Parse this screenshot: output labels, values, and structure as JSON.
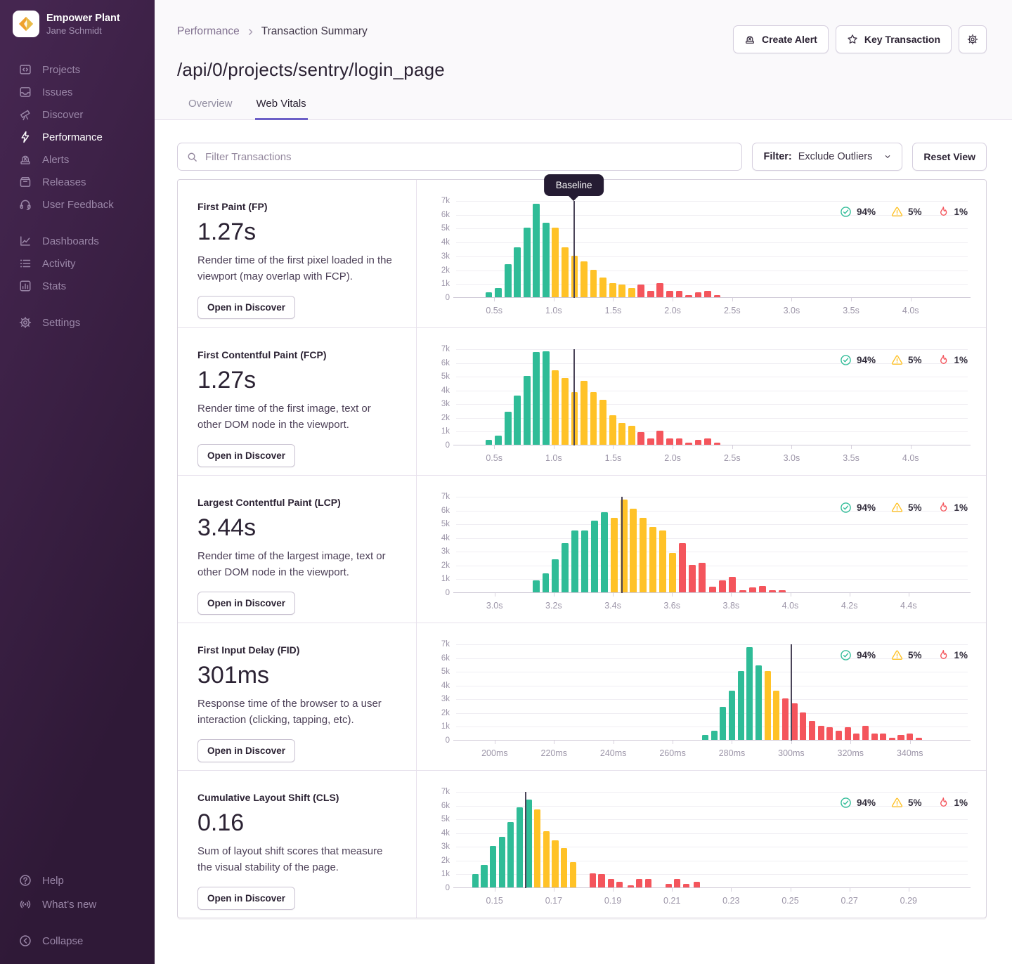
{
  "colors": {
    "good": "#2FBC97",
    "meh": "#FFC227",
    "poor": "#F4555C",
    "accent": "#6C5FC7",
    "baseline": "#4A4458"
  },
  "sidebar": {
    "org_name": "Empower Plant",
    "org_user": "Jane Schmidt",
    "groups": [
      [
        {
          "label": "Projects",
          "icon": "projects"
        },
        {
          "label": "Issues",
          "icon": "issues"
        },
        {
          "label": "Discover",
          "icon": "discover"
        },
        {
          "label": "Performance",
          "icon": "performance",
          "active": true
        },
        {
          "label": "Alerts",
          "icon": "alerts"
        },
        {
          "label": "Releases",
          "icon": "releases"
        },
        {
          "label": "User Feedback",
          "icon": "user-feedback"
        }
      ],
      [
        {
          "label": "Dashboards",
          "icon": "dashboards"
        },
        {
          "label": "Activity",
          "icon": "activity"
        },
        {
          "label": "Stats",
          "icon": "stats"
        }
      ],
      [
        {
          "label": "Settings",
          "icon": "settings"
        }
      ]
    ],
    "footer": [
      {
        "label": "Help",
        "icon": "help"
      },
      {
        "label": "What’s new",
        "icon": "whats-new"
      }
    ],
    "collapse": {
      "label": "Collapse",
      "icon": "collapse"
    }
  },
  "header": {
    "breadcrumb": [
      "Performance",
      "Transaction Summary"
    ],
    "buttons": [
      {
        "label": "Create Alert",
        "icon": "siren"
      },
      {
        "label": "Key Transaction",
        "icon": "star"
      },
      {
        "label": "",
        "icon": "gear"
      }
    ]
  },
  "page": {
    "title": "/api/0/projects/sentry/login_page",
    "tabs": [
      {
        "label": "Overview",
        "active": false
      },
      {
        "label": "Web Vitals",
        "active": true
      }
    ]
  },
  "toolbar": {
    "search_placeholder": "Filter Transactions",
    "filter_label": "Filter:",
    "filter_value": "Exclude Outliers",
    "reset_label": "Reset View"
  },
  "legend": [
    {
      "name": "good",
      "icon": "check-circle",
      "value": "94%"
    },
    {
      "name": "meh",
      "icon": "warning",
      "value": "5%"
    },
    {
      "name": "poor",
      "icon": "fire",
      "value": "1%"
    }
  ],
  "chart_common": {
    "ylabels": [
      "0",
      "1k",
      "2k",
      "3k",
      "4k",
      "5k",
      "6k",
      "7k"
    ],
    "ymax": 7
  },
  "vitals": [
    {
      "name": "First Paint (FP)",
      "value": "1.27s",
      "description": "Render time of the first pixel loaded in the viewport (may overlap with FCP).",
      "button": "Open in Discover",
      "chart": {
        "type": "bar",
        "xmin": 0.18,
        "xmax": 4.48,
        "binw": 0.08,
        "baseline": 1.17,
        "tooltip": "Baseline",
        "ticks": [
          [
            0.5,
            "0.5s"
          ],
          [
            1.0,
            "1.0s"
          ],
          [
            1.5,
            "1.5s"
          ],
          [
            2.0,
            "2.0s"
          ],
          [
            2.5,
            "2.5s"
          ],
          [
            3.0,
            "3.0s"
          ],
          [
            3.5,
            "3.5s"
          ],
          [
            4.0,
            "4.0s"
          ]
        ],
        "bars": [
          [
            0.455,
            0.35,
            "g"
          ],
          [
            0.535,
            0.65,
            "g"
          ],
          [
            0.615,
            2.4,
            "g"
          ],
          [
            0.695,
            3.6,
            "g"
          ],
          [
            0.775,
            5.0,
            "g"
          ],
          [
            0.855,
            6.75,
            "g"
          ],
          [
            0.935,
            5.4,
            "g"
          ],
          [
            1.015,
            5.0,
            "y"
          ],
          [
            1.095,
            3.6,
            "y"
          ],
          [
            1.175,
            3.0,
            "y"
          ],
          [
            1.255,
            2.6,
            "y"
          ],
          [
            1.335,
            2.0,
            "y"
          ],
          [
            1.415,
            1.4,
            "y"
          ],
          [
            1.495,
            1.0,
            "y"
          ],
          [
            1.575,
            0.9,
            "y"
          ],
          [
            1.655,
            0.65,
            "y"
          ],
          [
            1.735,
            0.9,
            "r"
          ],
          [
            1.815,
            0.45,
            "r"
          ],
          [
            1.895,
            1.0,
            "r"
          ],
          [
            1.975,
            0.45,
            "r"
          ],
          [
            2.055,
            0.45,
            "r"
          ],
          [
            2.135,
            0.15,
            "r"
          ],
          [
            2.215,
            0.35,
            "r"
          ],
          [
            2.295,
            0.45,
            "r"
          ],
          [
            2.375,
            0.15,
            "r"
          ]
        ]
      }
    },
    {
      "name": "First Contentful Paint (FCP)",
      "value": "1.27s",
      "description": "Render time of the first image, text or other DOM node in the viewport.",
      "button": "Open in Discover",
      "chart": {
        "type": "bar",
        "xmin": 0.18,
        "xmax": 4.48,
        "binw": 0.08,
        "baseline": 1.17,
        "ticks": [
          [
            0.5,
            "0.5s"
          ],
          [
            1.0,
            "1.0s"
          ],
          [
            1.5,
            "1.5s"
          ],
          [
            2.0,
            "2.0s"
          ],
          [
            2.5,
            "2.5s"
          ],
          [
            3.0,
            "3.0s"
          ],
          [
            3.5,
            "3.5s"
          ],
          [
            4.0,
            "4.0s"
          ]
        ],
        "bars": [
          [
            0.455,
            0.35,
            "g"
          ],
          [
            0.535,
            0.65,
            "g"
          ],
          [
            0.615,
            2.4,
            "g"
          ],
          [
            0.695,
            3.6,
            "g"
          ],
          [
            0.775,
            5.0,
            "g"
          ],
          [
            0.855,
            6.75,
            "g"
          ],
          [
            0.935,
            6.8,
            "g"
          ],
          [
            1.015,
            5.4,
            "y"
          ],
          [
            1.095,
            4.85,
            "y"
          ],
          [
            1.175,
            3.85,
            "y"
          ],
          [
            1.255,
            4.65,
            "y"
          ],
          [
            1.335,
            3.85,
            "y"
          ],
          [
            1.415,
            3.25,
            "y"
          ],
          [
            1.495,
            2.15,
            "y"
          ],
          [
            1.575,
            1.6,
            "y"
          ],
          [
            1.655,
            1.4,
            "y"
          ],
          [
            1.735,
            0.9,
            "r"
          ],
          [
            1.815,
            0.45,
            "r"
          ],
          [
            1.895,
            1.0,
            "r"
          ],
          [
            1.975,
            0.45,
            "r"
          ],
          [
            2.055,
            0.45,
            "r"
          ],
          [
            2.135,
            0.15,
            "r"
          ],
          [
            2.215,
            0.35,
            "r"
          ],
          [
            2.295,
            0.45,
            "r"
          ],
          [
            2.375,
            0.15,
            "r"
          ]
        ]
      }
    },
    {
      "name": "Largest Contentful Paint (LCP)",
      "value": "3.44s",
      "description": "Render time of the largest image, text or other DOM node in the viewport.",
      "button": "Open in Discover",
      "chart": {
        "type": "bar",
        "xmin": 2.87,
        "xmax": 4.6,
        "binw": 0.033,
        "baseline": 3.43,
        "ticks": [
          [
            3.0,
            "3.0s"
          ],
          [
            3.2,
            "3.2s"
          ],
          [
            3.4,
            "3.4s"
          ],
          [
            3.6,
            "3.6s"
          ],
          [
            3.8,
            "3.8s"
          ],
          [
            4.0,
            "4.0s"
          ],
          [
            4.2,
            "4.2s"
          ],
          [
            4.4,
            "4.4s"
          ]
        ],
        "bars": [
          [
            3.14,
            0.85,
            "g"
          ],
          [
            3.173,
            1.4,
            "g"
          ],
          [
            3.206,
            2.4,
            "g"
          ],
          [
            3.239,
            3.6,
            "g"
          ],
          [
            3.272,
            4.5,
            "g"
          ],
          [
            3.305,
            4.5,
            "g"
          ],
          [
            3.338,
            5.2,
            "g"
          ],
          [
            3.371,
            5.85,
            "g"
          ],
          [
            3.404,
            5.4,
            "y"
          ],
          [
            3.437,
            6.75,
            "y"
          ],
          [
            3.47,
            6.1,
            "y"
          ],
          [
            3.503,
            5.4,
            "y"
          ],
          [
            3.536,
            4.75,
            "y"
          ],
          [
            3.569,
            4.5,
            "y"
          ],
          [
            3.602,
            2.85,
            "y"
          ],
          [
            3.635,
            3.6,
            "r"
          ],
          [
            3.668,
            2.0,
            "r"
          ],
          [
            3.701,
            2.15,
            "r"
          ],
          [
            3.737,
            0.4,
            "r"
          ],
          [
            3.77,
            0.85,
            "r"
          ],
          [
            3.803,
            1.15,
            "r"
          ],
          [
            3.84,
            0.15,
            "r"
          ],
          [
            3.873,
            0.35,
            "r"
          ],
          [
            3.906,
            0.45,
            "r"
          ],
          [
            3.94,
            0.15,
            "r"
          ],
          [
            3.973,
            0.15,
            "r"
          ]
        ]
      }
    },
    {
      "name": "First Input Delay (FID)",
      "value": "301ms",
      "description": "Response time of the browser to a user interaction (clicking, tapping, etc).",
      "button": "Open in Discover",
      "chart": {
        "type": "bar",
        "xmin": 187,
        "xmax": 359.5,
        "binw": 3,
        "baseline": 300,
        "ticks": [
          [
            200,
            "200ms"
          ],
          [
            220,
            "220ms"
          ],
          [
            240,
            "240ms"
          ],
          [
            260,
            "260ms"
          ],
          [
            280,
            "280ms"
          ],
          [
            300,
            "300ms"
          ],
          [
            320,
            "320ms"
          ],
          [
            340,
            "340ms"
          ]
        ],
        "bars": [
          [
            271,
            0.35,
            "g"
          ],
          [
            274,
            0.65,
            "g"
          ],
          [
            277,
            2.4,
            "g"
          ],
          [
            280,
            3.6,
            "g"
          ],
          [
            283,
            5.0,
            "g"
          ],
          [
            286,
            6.75,
            "g"
          ],
          [
            289,
            5.4,
            "g"
          ],
          [
            292,
            5.0,
            "y"
          ],
          [
            295,
            3.6,
            "y"
          ],
          [
            298,
            3.0,
            "r"
          ],
          [
            301,
            2.65,
            "r"
          ],
          [
            304,
            2.0,
            "r"
          ],
          [
            307,
            1.4,
            "r"
          ],
          [
            310,
            1.0,
            "r"
          ],
          [
            313,
            0.9,
            "r"
          ],
          [
            316,
            0.65,
            "r"
          ],
          [
            319,
            0.9,
            "r"
          ],
          [
            322,
            0.45,
            "r"
          ],
          [
            325,
            1.0,
            "r"
          ],
          [
            328,
            0.45,
            "r"
          ],
          [
            331,
            0.45,
            "r"
          ],
          [
            334,
            0.15,
            "r"
          ],
          [
            337,
            0.35,
            "r"
          ],
          [
            340,
            0.45,
            "r"
          ],
          [
            343,
            0.15,
            "r"
          ]
        ]
      }
    },
    {
      "name": "Cumulative Layout Shift (CLS)",
      "value": "0.16",
      "description": "Sum of layout shift scores that measure the visual stability of the page.",
      "button": "Open in Discover",
      "chart": {
        "type": "bar",
        "xmin": 0.137,
        "xmax": 0.31,
        "binw": 0.003,
        "baseline": 0.1605,
        "ticks": [
          [
            0.15,
            "0.15"
          ],
          [
            0.17,
            "0.17"
          ],
          [
            0.19,
            "0.19"
          ],
          [
            0.21,
            "0.21"
          ],
          [
            0.23,
            "0.23"
          ],
          [
            0.25,
            "0.25"
          ],
          [
            0.27,
            "0.27"
          ],
          [
            0.29,
            "0.29"
          ]
        ],
        "bars": [
          [
            0.1435,
            0.95,
            "g"
          ],
          [
            0.1465,
            1.65,
            "g"
          ],
          [
            0.1495,
            3.0,
            "g"
          ],
          [
            0.1525,
            3.7,
            "g"
          ],
          [
            0.1555,
            4.75,
            "g"
          ],
          [
            0.1585,
            5.85,
            "g"
          ],
          [
            0.1615,
            6.4,
            "g"
          ],
          [
            0.1645,
            5.65,
            "y"
          ],
          [
            0.1675,
            4.1,
            "y"
          ],
          [
            0.1705,
            3.4,
            "y"
          ],
          [
            0.1735,
            2.85,
            "y"
          ],
          [
            0.1765,
            1.85,
            "y"
          ],
          [
            0.1832,
            1.0,
            "r"
          ],
          [
            0.1862,
            0.95,
            "r"
          ],
          [
            0.1893,
            0.6,
            "r"
          ],
          [
            0.1923,
            0.4,
            "r"
          ],
          [
            0.196,
            0.15,
            "r"
          ],
          [
            0.199,
            0.6,
            "r"
          ],
          [
            0.202,
            0.6,
            "r"
          ],
          [
            0.2088,
            0.25,
            "r"
          ],
          [
            0.2118,
            0.6,
            "r"
          ],
          [
            0.2148,
            0.25,
            "r"
          ],
          [
            0.2183,
            0.4,
            "r"
          ]
        ]
      }
    }
  ]
}
